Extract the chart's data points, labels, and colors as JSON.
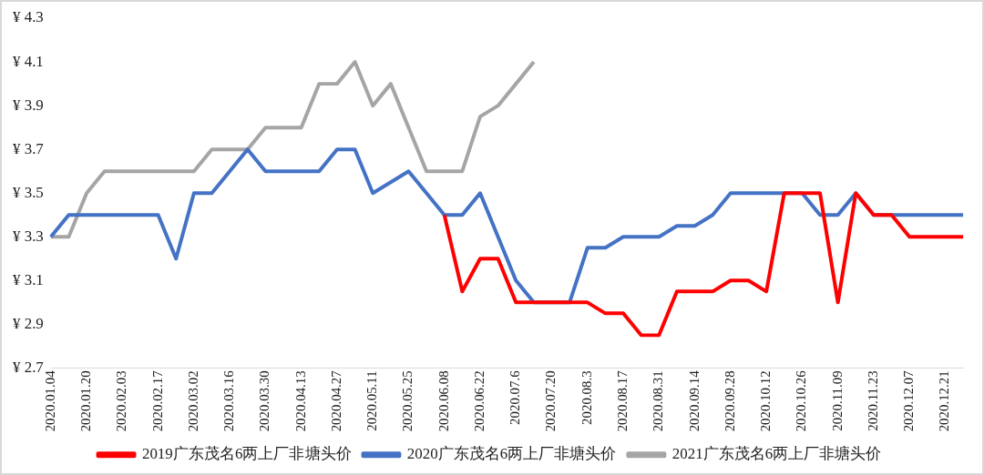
{
  "chart_data": {
    "type": "line",
    "categories": [
      "2020.01.04",
      null,
      "2020.01.20",
      null,
      "2020.02.03",
      null,
      "2020.02.17",
      null,
      "2020.03.02",
      null,
      "2020.03.16",
      null,
      "2020.03.30",
      null,
      "2020.04.13",
      null,
      "2020.04.27",
      null,
      "2020.05.11",
      null,
      "2020.05.25",
      null,
      "2020.06.08",
      null,
      "2020.06.22",
      null,
      "2020.07.6",
      null,
      "2020.07.20",
      null,
      "2020.08.3",
      null,
      "2020.08.17",
      null,
      "2020.08.31",
      null,
      "2020.09.14",
      null,
      "2020.09.28",
      null,
      "2020.10.12",
      null,
      "2020.10.26",
      null,
      "2020.11.09",
      null,
      "2020.11.23",
      null,
      "2020.12.07",
      null,
      "2020.12.21",
      null
    ],
    "series": [
      {
        "name": "2019广东茂名6两上厂非塘头价",
        "color": "#ff0000",
        "values": [
          null,
          null,
          null,
          null,
          null,
          null,
          null,
          null,
          null,
          null,
          null,
          null,
          null,
          null,
          null,
          null,
          null,
          null,
          null,
          null,
          null,
          null,
          3.4,
          3.05,
          3.2,
          3.2,
          3.0,
          3.0,
          3.0,
          3.0,
          3.0,
          2.95,
          2.95,
          2.85,
          2.85,
          3.05,
          3.05,
          3.05,
          3.1,
          3.1,
          3.05,
          3.5,
          3.5,
          3.5,
          3.0,
          3.5,
          3.4,
          3.4,
          3.3,
          3.3,
          3.3,
          3.3
        ]
      },
      {
        "name": "2020广东茂名6两上厂非塘头价",
        "color": "#4472c4",
        "values": [
          3.3,
          3.4,
          3.4,
          3.4,
          3.4,
          3.4,
          3.4,
          3.2,
          3.5,
          3.5,
          3.6,
          3.7,
          3.6,
          3.6,
          3.6,
          3.6,
          3.7,
          3.7,
          3.5,
          3.55,
          3.6,
          3.5,
          3.4,
          3.4,
          3.5,
          3.3,
          3.1,
          3.0,
          3.0,
          3.0,
          3.25,
          3.25,
          3.3,
          3.3,
          3.3,
          3.35,
          3.35,
          3.4,
          3.5,
          3.5,
          3.5,
          3.5,
          3.5,
          3.4,
          3.4,
          3.5,
          3.4,
          3.4,
          3.4,
          3.4,
          3.4,
          3.4
        ]
      },
      {
        "name": "2021广东茂名6两上厂非塘头价",
        "color": "#a5a5a5",
        "values": [
          3.3,
          3.3,
          3.5,
          3.6,
          3.6,
          3.6,
          3.6,
          3.6,
          3.6,
          3.7,
          3.7,
          3.7,
          3.8,
          3.8,
          3.8,
          4.0,
          4.0,
          4.1,
          3.9,
          4.0,
          3.8,
          3.6,
          3.6,
          3.6,
          3.85,
          3.9,
          4.0,
          4.1,
          null,
          null,
          null,
          null,
          null,
          null,
          null,
          null,
          null,
          null,
          null,
          null,
          null,
          null,
          null,
          null,
          null,
          null,
          null,
          null,
          null,
          null,
          null,
          null
        ]
      }
    ],
    "ylim": [
      2.7,
      4.3
    ],
    "yticks": [
      {
        "value": 2.7,
        "label": "¥ 2.7"
      },
      {
        "value": 2.9,
        "label": "¥ 2.9"
      },
      {
        "value": 3.1,
        "label": "¥ 3.1"
      },
      {
        "value": 3.3,
        "label": "¥ 3.3"
      },
      {
        "value": 3.5,
        "label": "¥ 3.5"
      },
      {
        "value": 3.7,
        "label": "¥ 3.7"
      },
      {
        "value": 3.9,
        "label": "¥ 3.9"
      },
      {
        "value": 4.1,
        "label": "¥ 4.1"
      },
      {
        "value": 4.3,
        "label": "¥ 4.3"
      }
    ],
    "grid": false,
    "legend": "bottom",
    "marker": "none",
    "line_style": "solid"
  }
}
